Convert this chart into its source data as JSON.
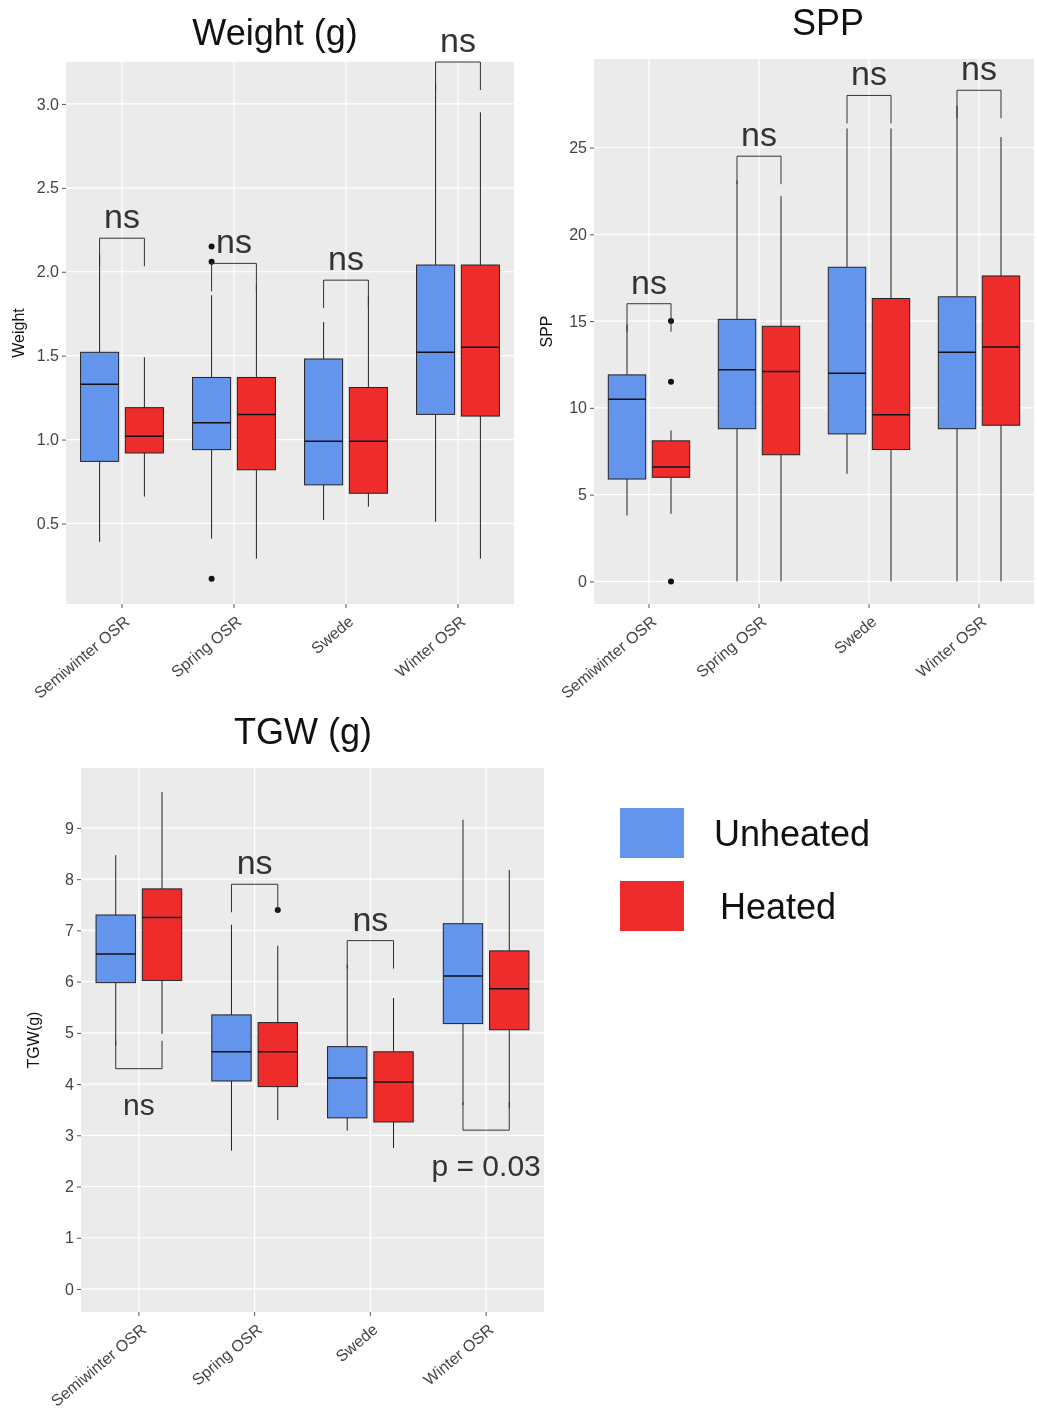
{
  "chart_data": [
    {
      "type": "box",
      "title": "Weight (g)",
      "ylabel": "Weight",
      "categories": [
        "Semiwinter OSR",
        "Spring OSR",
        "Swede",
        "Winter OSR"
      ],
      "ylim": [
        0.02,
        3.25
      ],
      "yticks": [
        {
          "value": 0.5,
          "label": "0.5"
        },
        {
          "value": 1,
          "label": "1.0"
        },
        {
          "value": 1.5,
          "label": "1.5"
        },
        {
          "value": 2,
          "label": "2.0"
        },
        {
          "value": 2.5,
          "label": "2.5"
        },
        {
          "value": 3,
          "label": "3.0"
        }
      ],
      "grid": true,
      "annotations": [
        "ns",
        "ns",
        "ns",
        "ns"
      ],
      "series": [
        {
          "color": "#6495ed",
          "boxes": [
            {
              "low": 0.39,
              "q1": 0.87,
              "median": 1.33,
              "q3": 1.52,
              "high": 2.1
            },
            {
              "low": 0.41,
              "q1": 0.94,
              "median": 1.1,
              "q3": 1.37,
              "high": 1.86,
              "outliers": [
                2.15,
                2.06,
                0.17
              ]
            },
            {
              "low": 0.52,
              "q1": 0.73,
              "median": 0.99,
              "q3": 1.48,
              "high": 1.7
            },
            {
              "low": 0.51,
              "q1": 1.15,
              "median": 1.52,
              "q3": 2.04,
              "high": 3.12
            }
          ]
        },
        {
          "color": "#ee2c2c",
          "boxes": [
            {
              "low": 0.66,
              "q1": 0.92,
              "median": 1.02,
              "q3": 1.19,
              "high": 1.49
            },
            {
              "low": 0.29,
              "q1": 0.82,
              "median": 1.15,
              "q3": 1.37,
              "high": 1.92
            },
            {
              "low": 0.6,
              "q1": 0.68,
              "median": 0.99,
              "q3": 1.31,
              "high": 1.86
            },
            {
              "low": 0.29,
              "q1": 1.14,
              "median": 1.55,
              "q3": 2.04,
              "high": 2.95
            }
          ]
        }
      ]
    },
    {
      "type": "box",
      "title": "SPP",
      "ylabel": "SPP",
      "categories": [
        "Semiwinter OSR",
        "Spring OSR",
        "Swede",
        "Winter OSR"
      ],
      "ylim": [
        -1.3,
        30.1
      ],
      "yticks": [
        0,
        5,
        10,
        15,
        20,
        25
      ],
      "grid": true,
      "annotations": [
        "ns",
        "ns",
        "ns",
        "ns"
      ],
      "series": [
        {
          "color": "#6495ed",
          "boxes": [
            {
              "low": 3.8,
              "q1": 5.9,
              "median": 10.5,
              "q3": 11.9,
              "high": 14.8
            },
            {
              "low": 0,
              "q1": 8.8,
              "median": 12.2,
              "q3": 15.1,
              "high": 23.1
            },
            {
              "low": 6.2,
              "q1": 8.5,
              "median": 12,
              "q3": 18.1,
              "high": 26.1
            },
            {
              "low": 0,
              "q1": 8.8,
              "median": 13.2,
              "q3": 16.4,
              "high": 27.4
            }
          ]
        },
        {
          "color": "#ee2c2c",
          "boxes": [
            {
              "low": 3.9,
              "q1": 6,
              "median": 6.6,
              "q3": 8.1,
              "high": 8.7,
              "outliers": [
                15,
                11.5,
                0
              ]
            },
            {
              "low": 0,
              "q1": 7.3,
              "median": 12.1,
              "q3": 14.7,
              "high": 22.2
            },
            {
              "low": 0,
              "q1": 7.6,
              "median": 9.6,
              "q3": 16.3,
              "high": 26.1
            },
            {
              "low": 0,
              "q1": 9,
              "median": 13.5,
              "q3": 17.6,
              "high": 25.6
            }
          ]
        }
      ]
    },
    {
      "type": "box",
      "title": "TGW (g)",
      "ylabel": "TGW(g)",
      "categories": [
        "Semiwinter OSR",
        "Spring OSR",
        "Swede",
        "Winter OSR"
      ],
      "ylim": [
        -0.45,
        10.17
      ],
      "yticks": [
        0,
        1,
        2,
        3,
        4,
        5,
        6,
        7,
        8,
        9
      ],
      "grid": true,
      "legend": "right",
      "annotations": [
        "ns",
        "ns",
        "ns",
        "p = 0.03"
      ],
      "series": [
        {
          "name": "Unheated",
          "color": "#6495ed",
          "boxes": [
            {
              "low": 4.75,
              "q1": 5.98,
              "median": 6.54,
              "q3": 7.3,
              "high": 8.47
            },
            {
              "low": 2.7,
              "q1": 4.06,
              "median": 4.63,
              "q3": 5.35,
              "high": 7.11
            },
            {
              "low": 3.09,
              "q1": 3.34,
              "median": 4.12,
              "q3": 4.73,
              "high": 6.33
            },
            {
              "low": 3.59,
              "q1": 5.18,
              "median": 6.11,
              "q3": 7.13,
              "high": 9.16
            }
          ]
        },
        {
          "name": "Heated",
          "color": "#ee2c2c",
          "boxes": [
            {
              "low": 4.98,
              "q1": 6.02,
              "median": 7.25,
              "q3": 7.81,
              "high": 9.7
            },
            {
              "low": 3.3,
              "q1": 3.95,
              "median": 4.63,
              "q3": 5.2,
              "high": 6.7,
              "outliers": [
                7.4
              ]
            },
            {
              "low": 2.75,
              "q1": 3.26,
              "median": 4.04,
              "q3": 4.63,
              "high": 5.68
            },
            {
              "low": 3.53,
              "q1": 5.06,
              "median": 5.86,
              "q3": 6.6,
              "high": 8.18
            }
          ]
        }
      ]
    }
  ]
}
